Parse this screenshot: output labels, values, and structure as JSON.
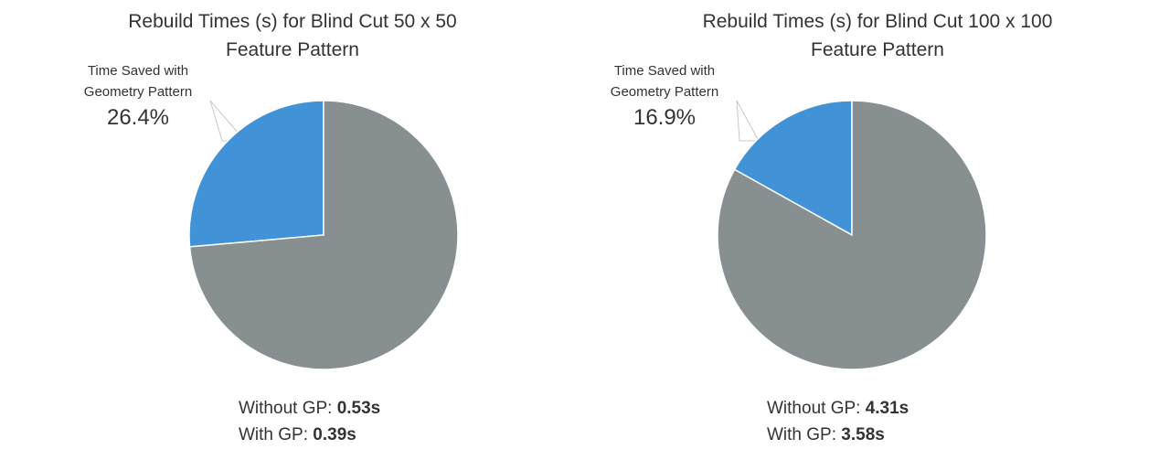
{
  "chart_data": [
    {
      "type": "pie",
      "title": [
        "Rebuild Times (s) for Blind Cut 50 x 50",
        "Feature Pattern"
      ],
      "slices": [
        {
          "label": "Time Saved with Geometry Pattern",
          "value": 26.4,
          "color": "#4292d8"
        },
        {
          "label": "",
          "value": 73.6,
          "color": "#878f90"
        }
      ],
      "callout": {
        "line1": "Time Saved with",
        "line2": "Geometry Pattern",
        "value": "26.4%"
      },
      "stats": [
        {
          "label": "Without GP:",
          "value": "0.53s"
        },
        {
          "label": "With GP:",
          "value": "0.39s"
        }
      ]
    },
    {
      "type": "pie",
      "title": [
        "Rebuild Times (s) for Blind Cut 100 x 100",
        "Feature Pattern"
      ],
      "slices": [
        {
          "label": "Time Saved with Geometry Pattern",
          "value": 16.9,
          "color": "#4292d8"
        },
        {
          "label": "",
          "value": 83.1,
          "color": "#878f90"
        }
      ],
      "callout": {
        "line1": "Time Saved with",
        "line2": "Geometry Pattern",
        "value": "16.9%"
      },
      "stats": [
        {
          "label": "Without GP:",
          "value": "4.31s"
        },
        {
          "label": "With GP:",
          "value": "3.58s"
        }
      ]
    }
  ]
}
